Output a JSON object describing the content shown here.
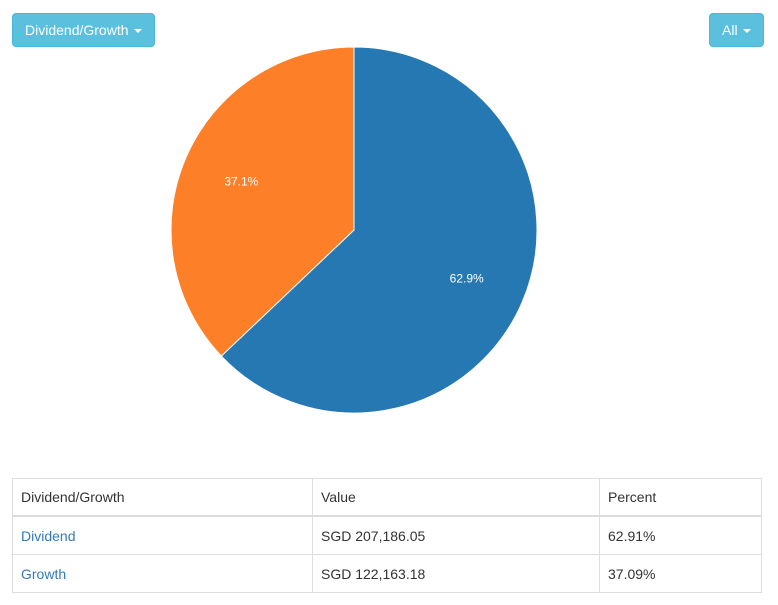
{
  "toolbar": {
    "group_by_label": "Dividend/Growth",
    "filter_label": "All"
  },
  "chart_data": {
    "type": "pie",
    "categories": [
      "Dividend",
      "Growth"
    ],
    "values": [
      207186.05,
      122163.18
    ],
    "percent_labels": [
      "62.9%",
      "37.1%"
    ],
    "colors": [
      "#2678b2",
      "#fd7f28"
    ]
  },
  "table": {
    "headers": [
      "Dividend/Growth",
      "Value",
      "Percent"
    ],
    "rows": [
      {
        "name": "Dividend",
        "value": "SGD 207,186.05",
        "percent": "62.91%"
      },
      {
        "name": "Growth",
        "value": "SGD 122,163.18",
        "percent": "37.09%"
      }
    ]
  }
}
